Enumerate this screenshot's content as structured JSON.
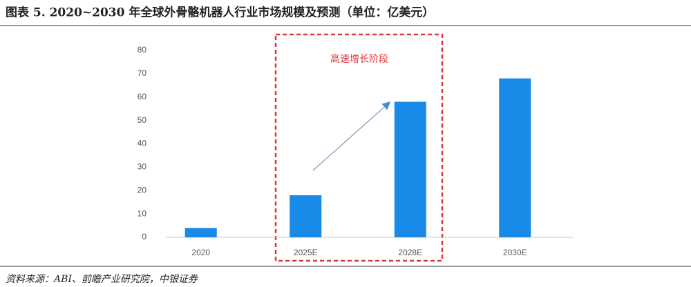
{
  "chart_data": {
    "type": "bar",
    "title": "图表 5. 2020~2030 年全球外骨骼机器人行业市场规模及预测（单位：亿美元）",
    "annotation": "高速增长阶段",
    "source": "资料来源：ABI、前瞻产业研究院，中银证券",
    "categories": [
      "2020",
      "2025E",
      "2028E",
      "2030E"
    ],
    "values": [
      4,
      18,
      58,
      68
    ],
    "color": "#1a8ae8",
    "ylim": [
      0,
      80
    ],
    "yticks": [
      0,
      10,
      20,
      30,
      40,
      50,
      60,
      70,
      80
    ],
    "grid": false
  }
}
